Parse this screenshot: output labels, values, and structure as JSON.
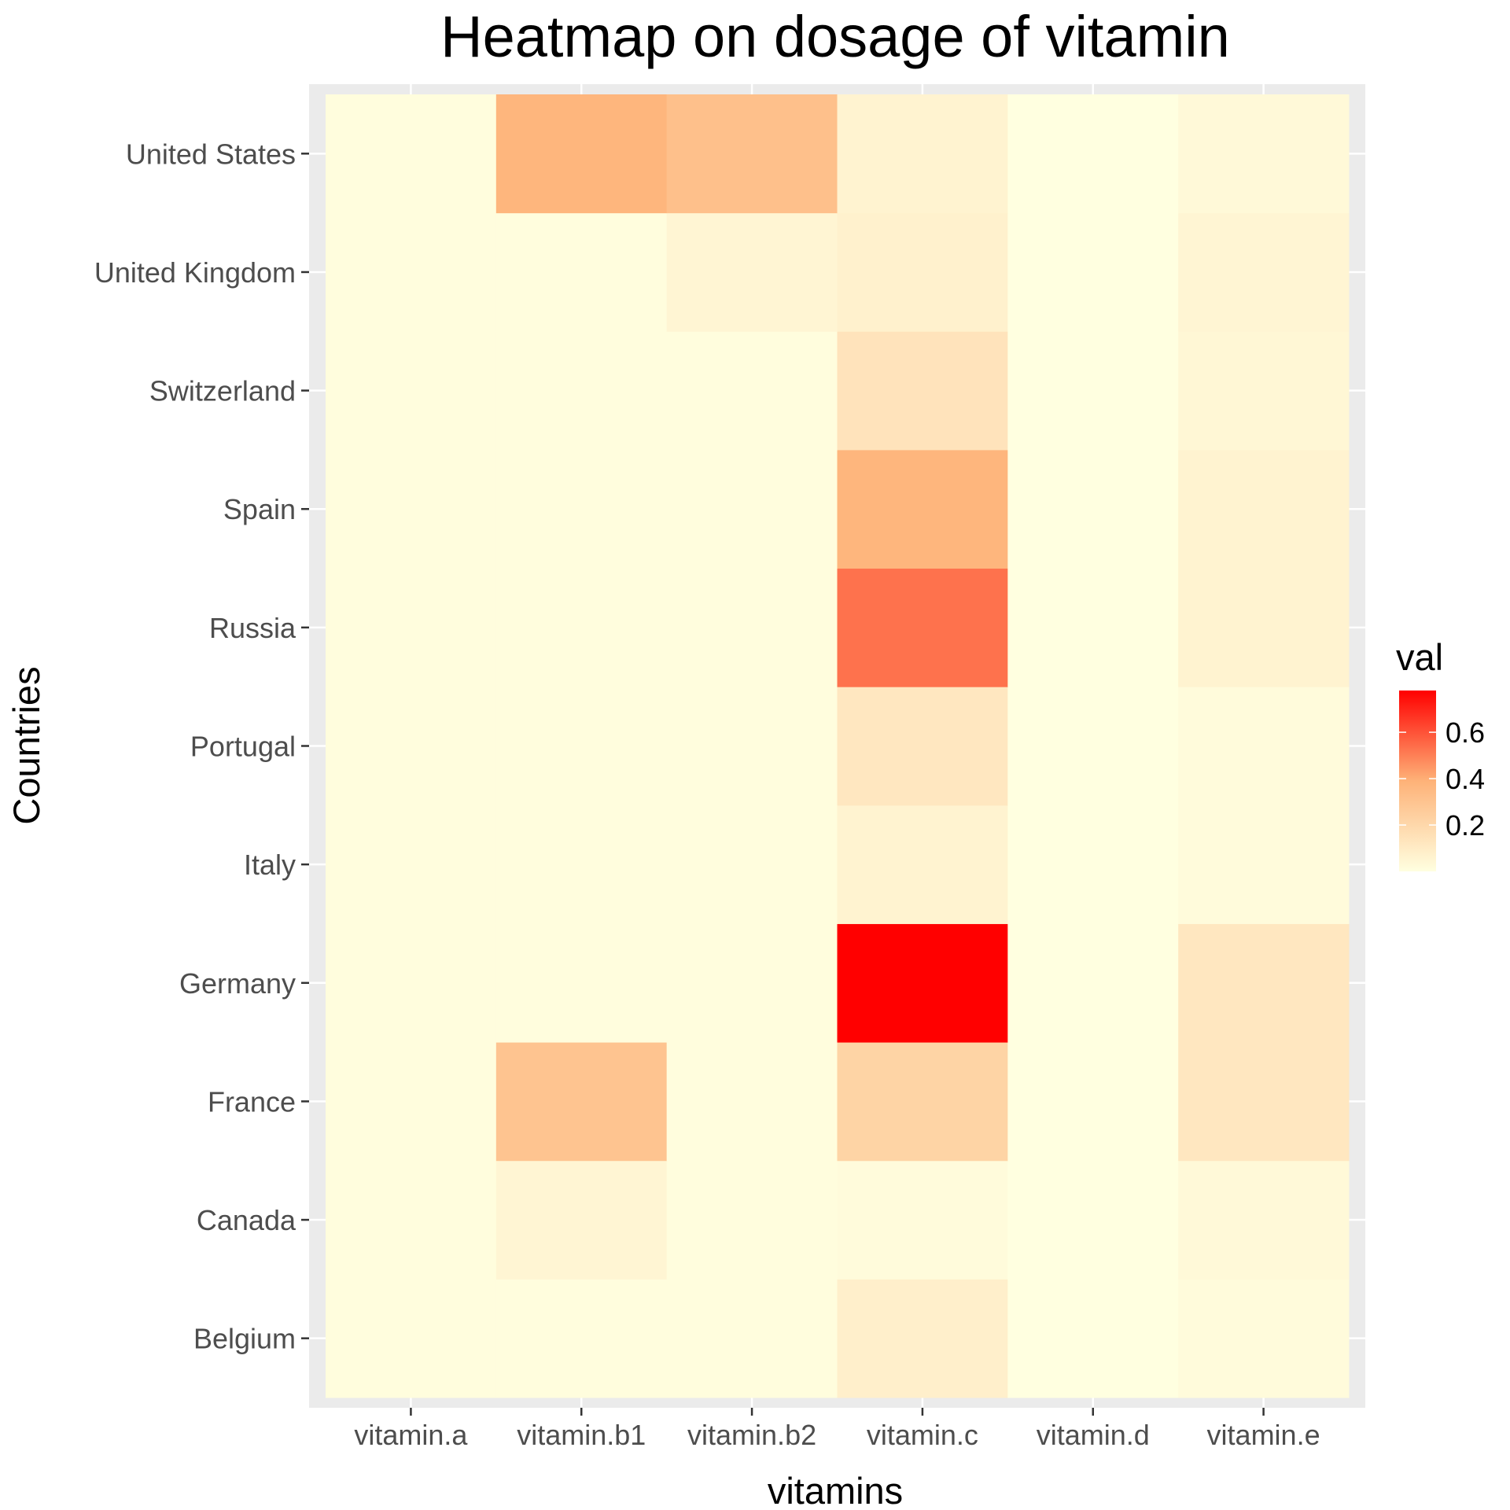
{
  "chart_data": {
    "type": "heatmap",
    "title": "Heatmap on dosage of vitamin",
    "xlabel": "vitamins",
    "ylabel": "Countries",
    "x_categories": [
      "vitamin.a",
      "vitamin.b1",
      "vitamin.b2",
      "vitamin.c",
      "vitamin.d",
      "vitamin.e"
    ],
    "y_categories": [
      "Belgium",
      "Canada",
      "France",
      "Germany",
      "Italy",
      "Portugal",
      "Russia",
      "Spain",
      "Switzerland",
      "United Kingdom",
      "United States"
    ],
    "values": [
      [
        0.01,
        0.01,
        0.01,
        0.08,
        0.0,
        0.02
      ],
      [
        0.01,
        0.05,
        0.01,
        0.02,
        0.0,
        0.03
      ],
      [
        0.01,
        0.3,
        0.01,
        0.22,
        0.0,
        0.12
      ],
      [
        0.01,
        0.01,
        0.01,
        0.78,
        0.0,
        0.12
      ],
      [
        0.01,
        0.01,
        0.01,
        0.06,
        0.0,
        0.02
      ],
      [
        0.01,
        0.01,
        0.01,
        0.12,
        0.0,
        0.02
      ],
      [
        0.01,
        0.01,
        0.01,
        0.53,
        0.0,
        0.06
      ],
      [
        0.01,
        0.01,
        0.01,
        0.37,
        0.0,
        0.06
      ],
      [
        0.01,
        0.01,
        0.01,
        0.14,
        0.0,
        0.04
      ],
      [
        0.01,
        0.01,
        0.05,
        0.07,
        0.0,
        0.05
      ],
      [
        0.01,
        0.37,
        0.32,
        0.06,
        0.0,
        0.03
      ]
    ],
    "legend": {
      "title": "val",
      "ticks": [
        0.2,
        0.4,
        0.6
      ],
      "tick_labels": [
        "0.2",
        "0.4",
        "0.6"
      ],
      "range": [
        0.0,
        0.78
      ],
      "low_color": "#ffffe0",
      "high_color": "#ff0000",
      "position": "right"
    },
    "panel_background": "#ebebeb",
    "grid": true
  }
}
